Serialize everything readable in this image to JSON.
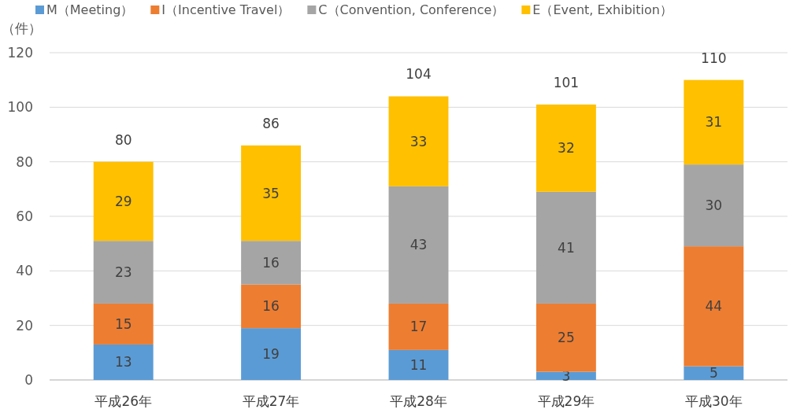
{
  "chart_data": {
    "type": "bar",
    "stacked": true,
    "ylabel": "（件）",
    "categories": [
      "平成26年",
      "平成27年",
      "平成28年",
      "平成29年",
      "平成30年"
    ],
    "series": [
      {
        "name": "M（Meeting）",
        "color": "#5b9bd5",
        "values": [
          13,
          19,
          11,
          3,
          5
        ]
      },
      {
        "name": "I（Incentive Travel）",
        "color": "#ed7d31",
        "values": [
          15,
          16,
          17,
          25,
          44
        ]
      },
      {
        "name": "C（Convention, Conference）",
        "color": "#a5a5a5",
        "values": [
          23,
          16,
          43,
          41,
          30
        ]
      },
      {
        "name": "E（Event, Exhibition）",
        "color": "#ffc000",
        "values": [
          29,
          35,
          33,
          32,
          31
        ]
      }
    ],
    "totals": [
      "80",
      "86",
      "104",
      "101",
      "110"
    ],
    "ylim": [
      0,
      120
    ],
    "yticks": [
      0,
      20,
      40,
      60,
      80,
      100,
      120
    ],
    "grid": "y",
    "legend": "top",
    "data_labels": true
  }
}
